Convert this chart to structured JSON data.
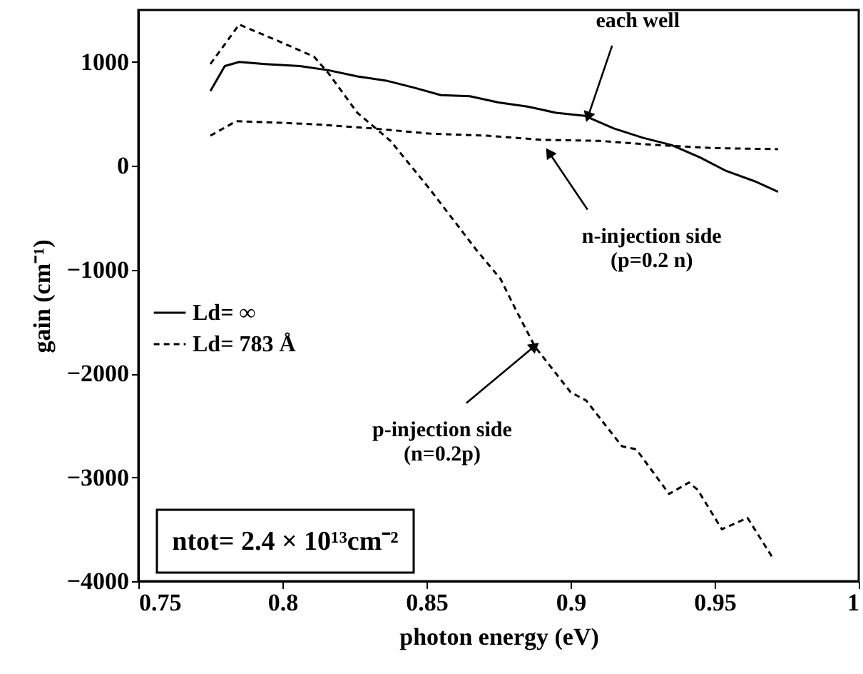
{
  "chart_data": {
    "type": "line",
    "xlabel": "photon energy (eV)",
    "ylabel": "gain (cm⁻¹)",
    "xlim": [
      0.75,
      1.0
    ],
    "xticks": [
      0.75,
      0.8,
      0.85,
      0.9,
      0.95,
      1
    ],
    "ylim": [
      -4000,
      1500
    ],
    "yticks": [
      -4000,
      -3000,
      -2000,
      -1000,
      0,
      1000
    ],
    "grid": false,
    "legend": "left",
    "marker": "none",
    "series": [
      {
        "name": "Ld= ∞",
        "color": "#000000",
        "line_style": "solid",
        "x": [
          0.775,
          0.78,
          0.785,
          0.794,
          0.806,
          0.816,
          0.826,
          0.836,
          0.846,
          0.855,
          0.865,
          0.875,
          0.885,
          0.895,
          0.905,
          0.915,
          0.925,
          0.935,
          0.945,
          0.954,
          0.964,
          0.972
        ],
        "values": [
          720,
          960,
          1000,
          980,
          960,
          920,
          860,
          820,
          750,
          680,
          670,
          610,
          570,
          510,
          480,
          360,
          270,
          200,
          80,
          -50,
          -150,
          -250
        ]
      },
      {
        "name": "Ld= 783 Å",
        "color": "#000000",
        "line_style": "dashed",
        "x": [
          0.775,
          0.785,
          0.7995,
          0.811,
          0.816,
          0.826,
          0.8375,
          0.851,
          0.8673,
          0.8757,
          0.8807,
          0.8876,
          0.9,
          0.9054,
          0.9178,
          0.9228,
          0.9342,
          0.9411,
          0.9441,
          0.9525,
          0.9614,
          0.9698
        ],
        "values": [
          980,
          1360,
          1190,
          1050,
          890,
          510,
          240,
          -220,
          -810,
          -1090,
          -1370,
          -1740,
          -2180,
          -2260,
          -2700,
          -2730,
          -3160,
          -3050,
          -3120,
          -3500,
          -3390,
          -3760
        ]
      },
      {
        "color": "#000000",
        "line_style": "dashed",
        "x": [
          0.775,
          0.784,
          0.794,
          0.811,
          0.831,
          0.851,
          0.871,
          0.89,
          0.91,
          0.93,
          0.95,
          0.972
        ],
        "values": [
          290,
          430,
          420,
          400,
          360,
          310,
          290,
          250,
          240,
          200,
          170,
          160
        ]
      }
    ],
    "annotations": [
      {
        "text": "each well",
        "x": 0.906,
        "y": 470
      },
      {
        "text": "n-injection side\n(p=0.2 n)",
        "x": 0.8925,
        "y": 128
      },
      {
        "text": "p-injection side\n(n=0.2p)",
        "x": 0.8876,
        "y": -1735
      },
      "ntot= 2.4 × 10¹³cm⁻²"
    ]
  }
}
